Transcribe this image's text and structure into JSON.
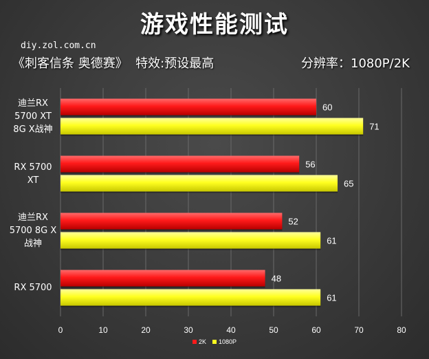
{
  "title": "游戏性能测试",
  "source": "diy.zol.com.cn",
  "subtitle_game": "《刺客信条 奥德赛》  特效:预设最高",
  "subtitle_resolution": "分辨率：1080P/2K",
  "colors": {
    "2K": "#ff1a1a",
    "1080P": "#ffff20"
  },
  "chart_data": {
    "type": "bar",
    "orientation": "horizontal",
    "categories": [
      "迪兰RX 5700 XT 8G X战神",
      "RX 5700 XT",
      "迪兰RX 5700 8G X 战神",
      "RX 5700"
    ],
    "category_lines": [
      [
        "迪兰RX",
        "5700 XT",
        "8G X战神"
      ],
      [
        "RX 5700",
        "XT"
      ],
      [
        "迪兰RX",
        "5700 8G X",
        "战神"
      ],
      [
        "RX 5700"
      ]
    ],
    "series": [
      {
        "name": "2K",
        "values": [
          60,
          56,
          52,
          48
        ]
      },
      {
        "name": "1080P",
        "values": [
          71,
          65,
          61,
          61
        ]
      }
    ],
    "xlim": [
      0,
      80
    ],
    "xticks": [
      0,
      10,
      20,
      30,
      40,
      50,
      60,
      70,
      80
    ],
    "grid": true,
    "legend": "bottom"
  }
}
